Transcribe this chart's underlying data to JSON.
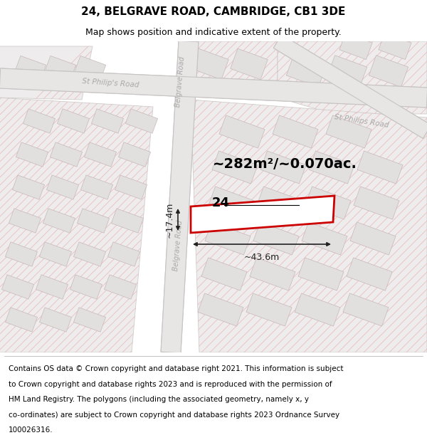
{
  "title": "24, BELGRAVE ROAD, CAMBRIDGE, CB1 3DE",
  "subtitle": "Map shows position and indicative extent of the property.",
  "footer_lines": [
    "Contains OS data © Crown copyright and database right 2021. This information is subject",
    "to Crown copyright and database rights 2023 and is reproduced with the permission of",
    "HM Land Registry. The polygons (including the associated geometry, namely x, y",
    "co-ordinates) are subject to Crown copyright and database rights 2023 Ordnance Survey",
    "100026316."
  ],
  "map_bg": "#f5f3f3",
  "road_fill": "#e8e5e5",
  "road_edge": "#c8c4c4",
  "block_fill": "#eeecec",
  "block_edge": "#d0cccc",
  "bld_fill": "#e2dfdf",
  "bld_edge": "#c8b8b8",
  "hatch_color": "#e8b8b8",
  "pink_line": "#e8b0b0",
  "property_edge": "#cc0000",
  "property_fill": "#ffffff",
  "dim_color": "#222222",
  "road_label_color": "#aaaaaa",
  "area_text": "~282m²/~0.070ac.",
  "dim_width": "~43.6m",
  "dim_height": "~17.4m",
  "label_24": "24",
  "title_fontsize": 11,
  "subtitle_fontsize": 9,
  "footer_fontsize": 7.5,
  "area_fontsize": 14,
  "dim_fontsize": 9,
  "label_fontsize": 13
}
